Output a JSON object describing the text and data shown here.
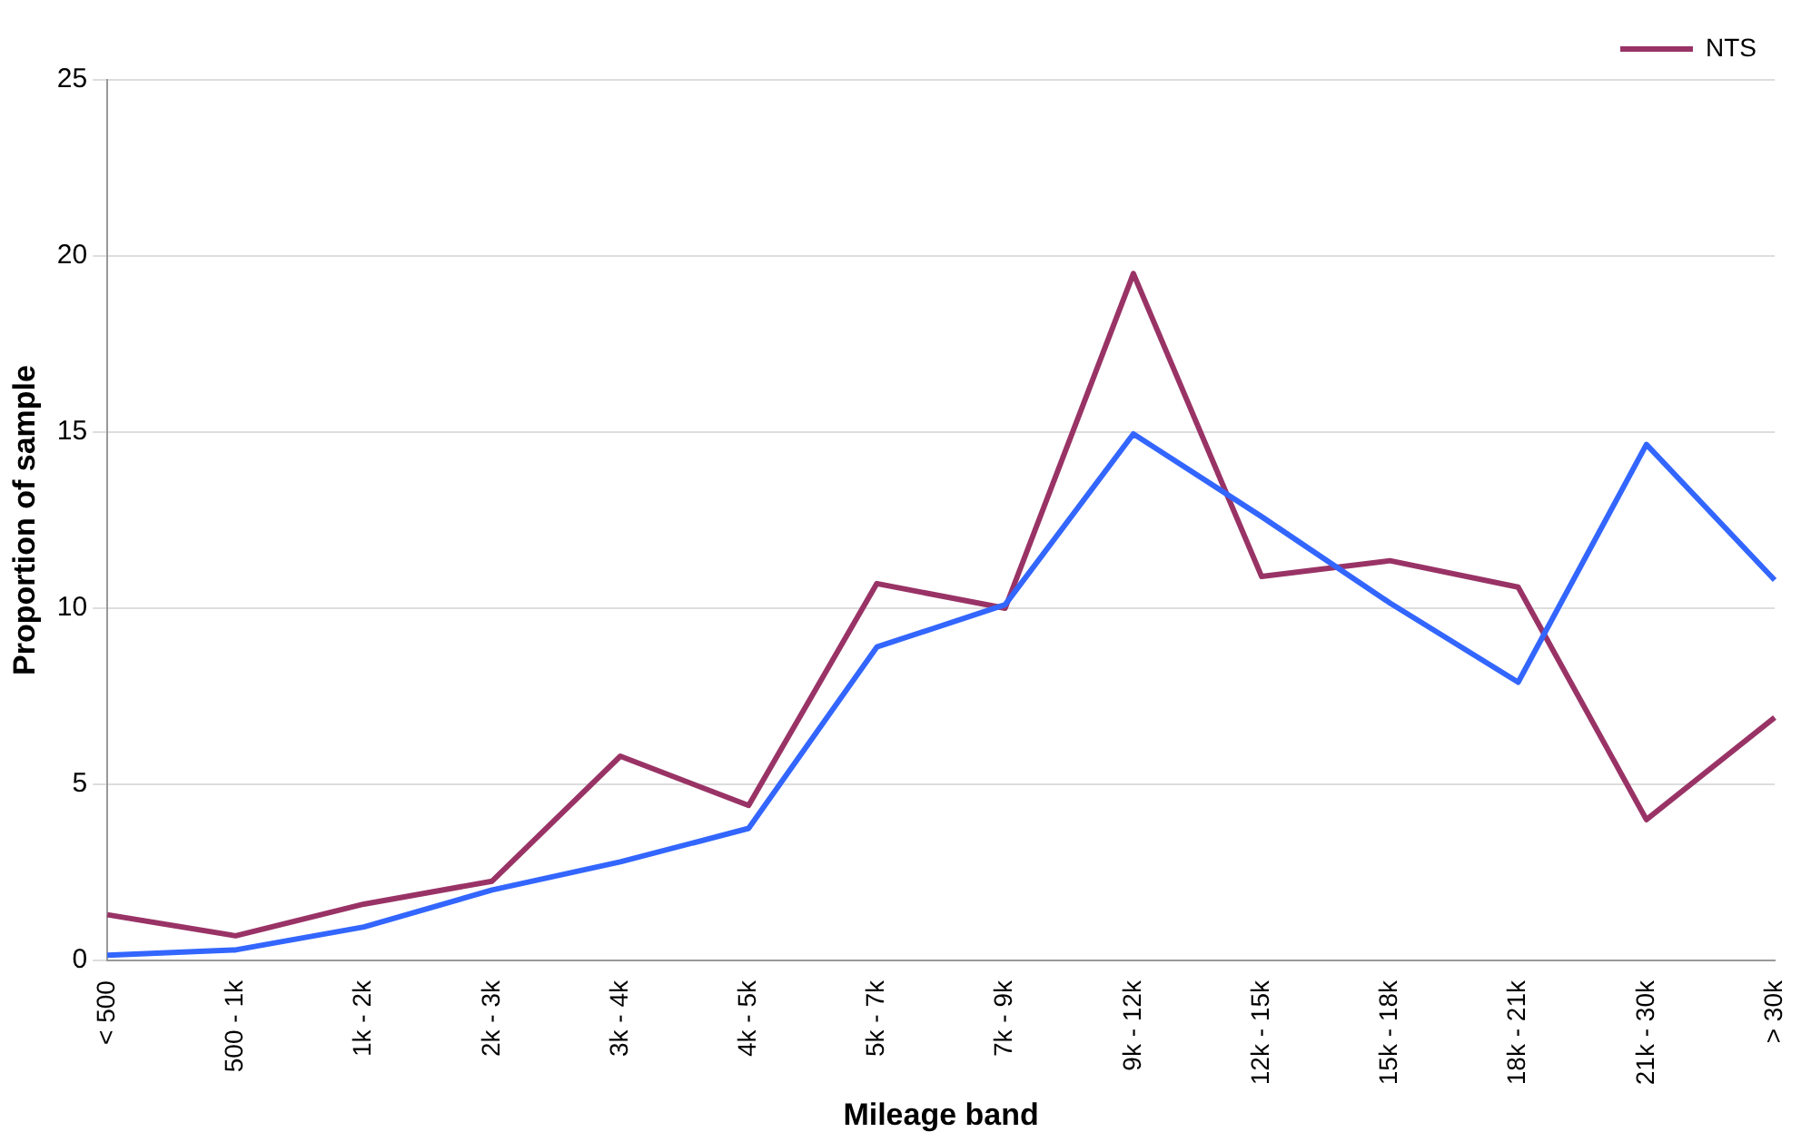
{
  "chart_data": {
    "type": "line",
    "xlabel": "Mileage band",
    "ylabel": "Proportion of sample",
    "categories": [
      "< 500",
      "500 - 1k",
      "1k - 2k",
      "2k - 3k",
      "3k - 4k",
      "4k - 5k",
      "5k - 7k",
      "7k - 9k",
      "9k - 12k",
      "12k - 15k",
      "15k - 18k",
      "18k - 21k",
      "21k - 30k",
      "> 30k"
    ],
    "series": [
      {
        "color": "#3366ff",
        "values": [
          0.15,
          0.3,
          0.95,
          2.0,
          2.8,
          3.75,
          8.9,
          10.1,
          14.95,
          12.6,
          10.15,
          7.9,
          14.65,
          10.8
        ]
      },
      {
        "name": "NTS",
        "color": "#993366",
        "values": [
          1.3,
          0.7,
          1.6,
          2.25,
          5.8,
          4.4,
          10.7,
          10.0,
          19.5,
          10.9,
          11.35,
          10.6,
          4.0,
          6.9
        ]
      }
    ],
    "ylim": [
      0,
      25
    ],
    "yticks": [
      0,
      5,
      10,
      15,
      20,
      25
    ],
    "grid": "y",
    "legend": "top right",
    "marker": "none",
    "line_style": "solid"
  }
}
